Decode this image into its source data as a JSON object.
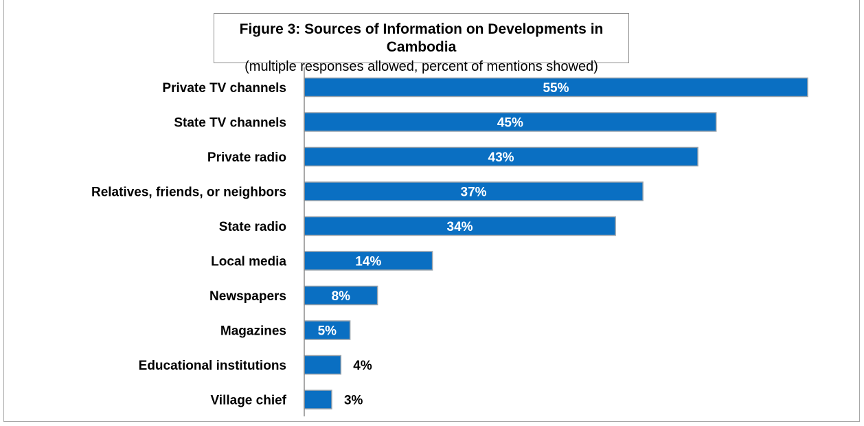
{
  "chart_data": {
    "type": "bar",
    "orientation": "horizontal",
    "title": "Figure 3: Sources of Information on Developments in Cambodia",
    "subtitle": "(multiple responses allowed, percent of mentions showed)",
    "categories": [
      "Private TV channels",
      "State TV channels",
      "Private radio",
      "Relatives, friends, or neighbors",
      "State radio",
      "Local media",
      "Newspapers",
      "Magazines",
      "Educational institutions",
      "Village chief"
    ],
    "values": [
      55,
      45,
      43,
      37,
      34,
      14,
      8,
      5,
      4,
      3
    ],
    "value_labels": [
      "55%",
      "45%",
      "43%",
      "37%",
      "34%",
      "14%",
      "8%",
      "5%",
      "4%",
      "3%"
    ],
    "xlim": [
      0,
      55
    ],
    "grid": false,
    "legend": "none",
    "bar_color": "#0a6fc2",
    "bar_edge_color": "#9aa3ab"
  }
}
